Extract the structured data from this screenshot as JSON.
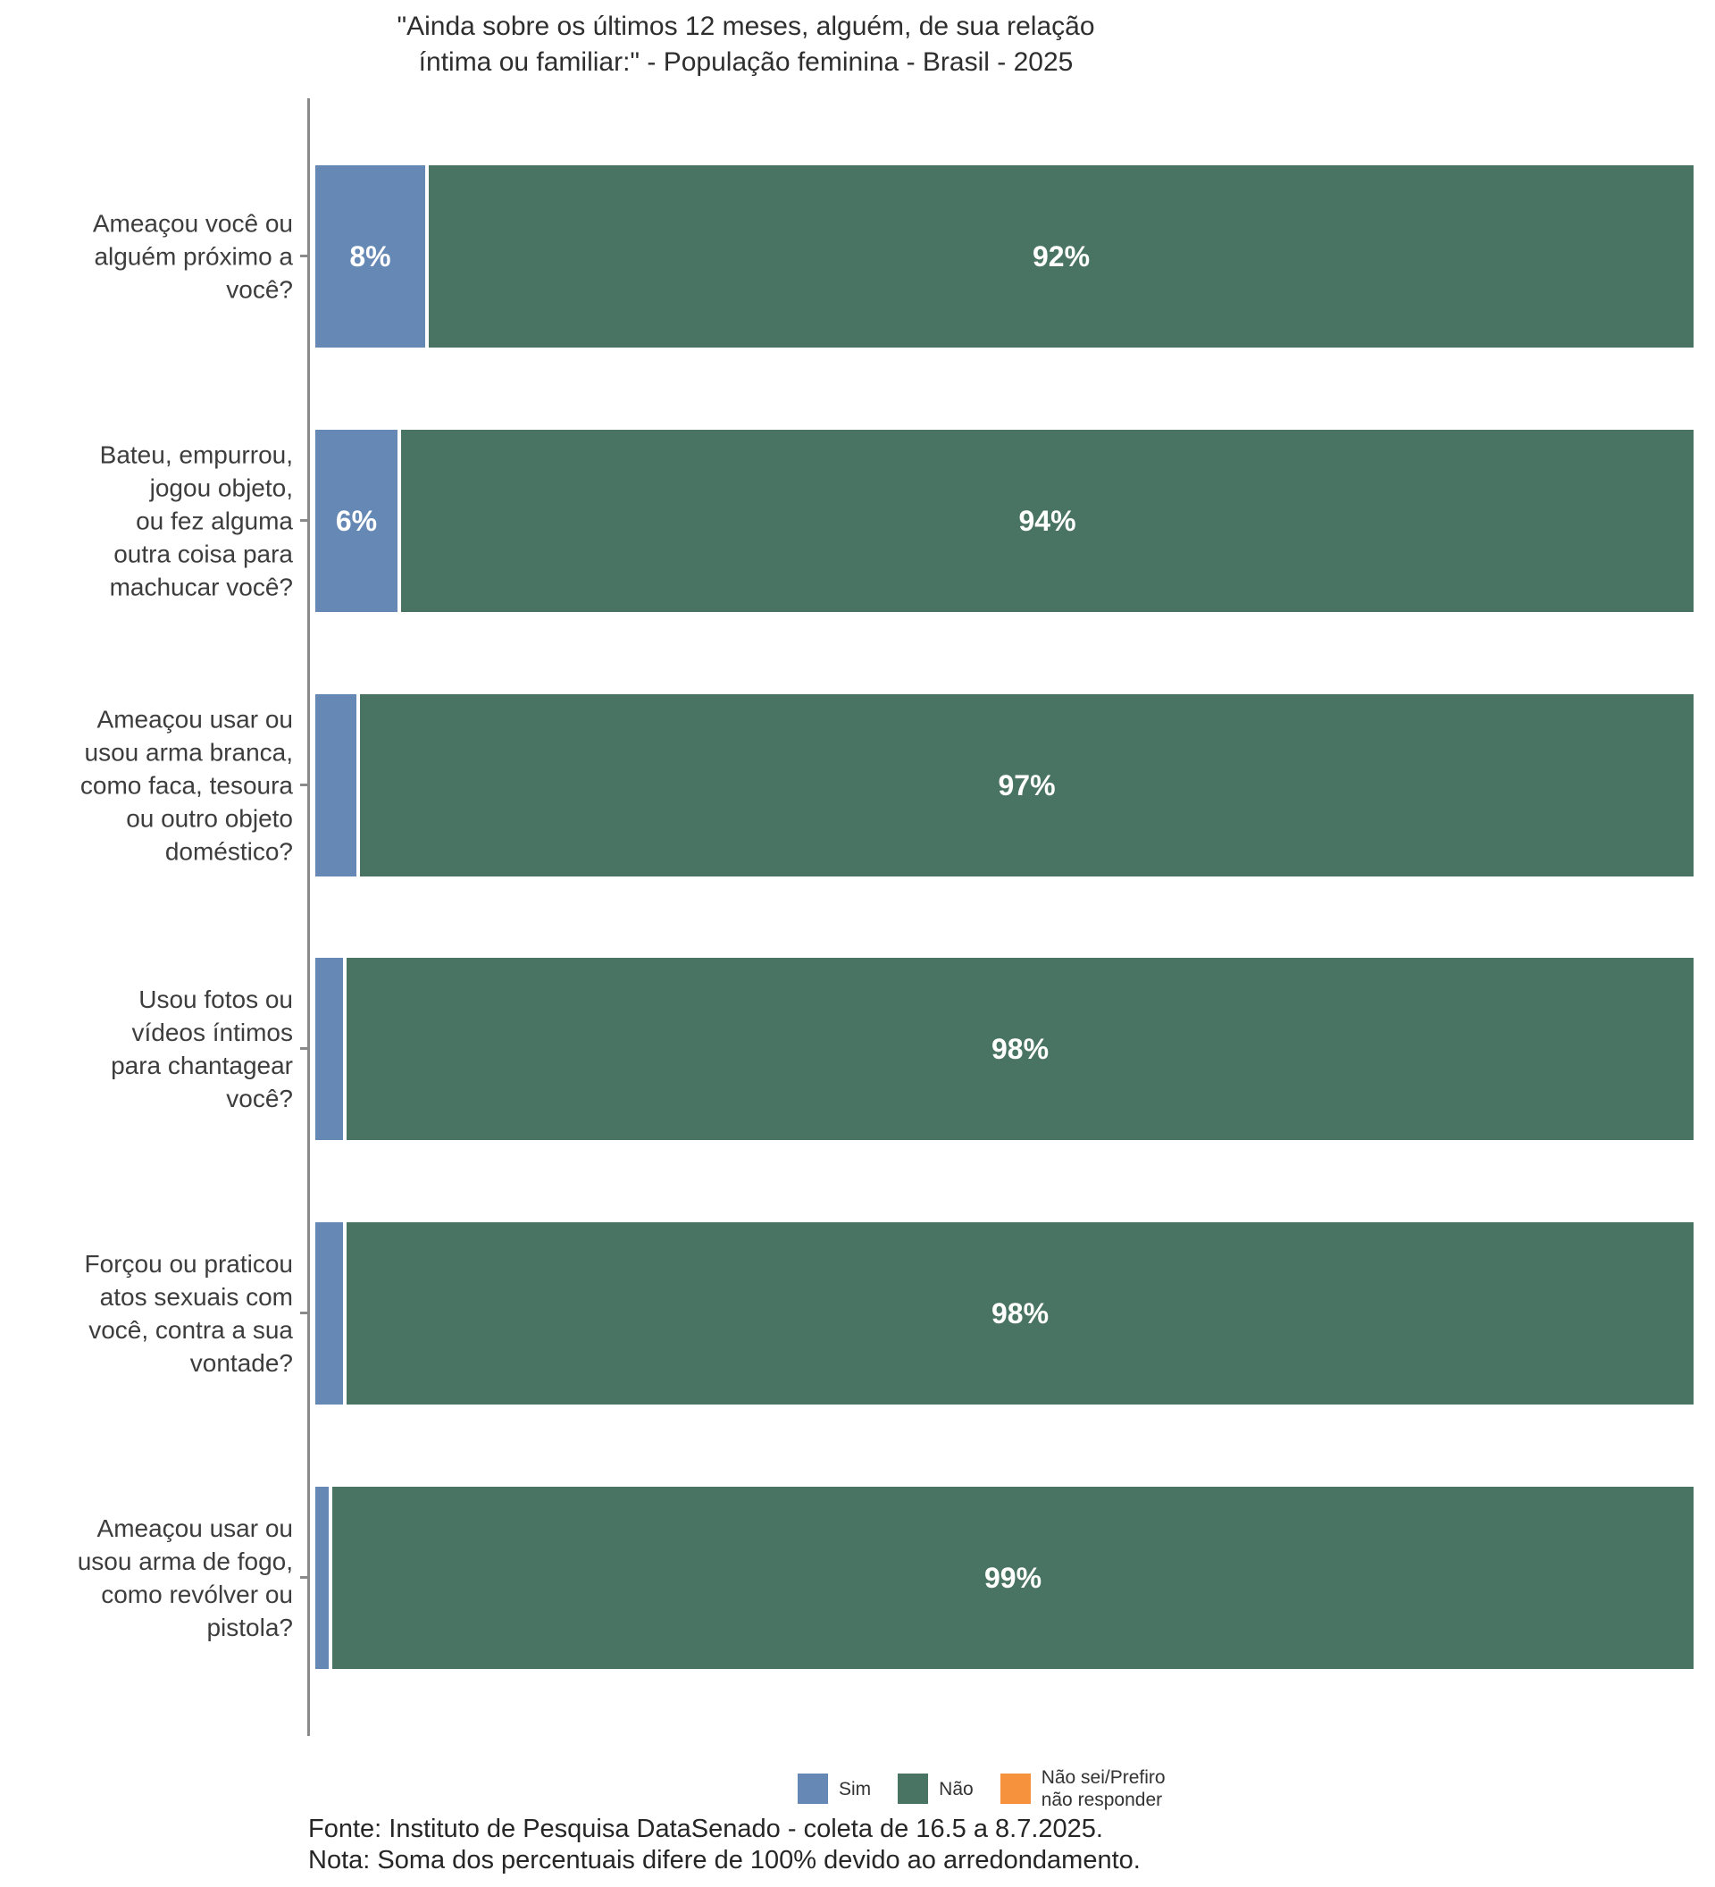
{
  "title": "\"Ainda sobre os últimos 12 meses, alguém, de sua relação\níntima ou familiar:\" - População feminina - Brasil - 2025",
  "caption": "Fonte: Instituto de Pesquisa DataSenado - coleta de 16.5 a 8.7.2025.\nNota: Soma dos percentuais difere de 100% devido ao arredondamento.",
  "legend": {
    "items": [
      {
        "label": "Sim",
        "color": "#6588b4"
      },
      {
        "label": "Não",
        "color": "#497363"
      },
      {
        "label": "Não sei/Prefiro\nnão responder",
        "color": "#f6913e"
      }
    ]
  },
  "chart_data": {
    "type": "bar",
    "orientation": "horizontal",
    "stacked": true,
    "unit": "%",
    "xlim": [
      0,
      100
    ],
    "title": "\"Ainda sobre os últimos 12 meses, alguém, de sua relação íntima ou familiar:\" - População feminina - Brasil - 2025",
    "categories": [
      "Ameaçou você ou\nalguém próximo a\nvocê?",
      "Bateu, empurrou,\njogou objeto,\nou fez alguma\noutra coisa para\nmachucar você?",
      "Ameaçou usar ou\nusou arma branca,\ncomo faca, tesoura\nou outro objeto\ndoméstico?",
      "Usou fotos ou\nvídeos íntimos\npara chantagear\nvocê?",
      "Forçou ou praticou\natos sexuais com\nvocê, contra a sua\nvontade?",
      "Ameaçou usar ou\nusou arma de fogo,\ncomo revólver ou\npistola?"
    ],
    "series": [
      {
        "name": "Sim",
        "color": "#6588b4",
        "values": [
          8,
          6,
          3,
          2,
          2,
          1
        ]
      },
      {
        "name": "Não",
        "color": "#497363",
        "values": [
          92,
          94,
          97,
          98,
          98,
          99
        ]
      },
      {
        "name": "Não sei/Prefiro não responder",
        "color": "#f6913e",
        "values": [
          0,
          0,
          0,
          0,
          0,
          0
        ]
      }
    ],
    "bar_labels": {
      "sim": [
        "8%",
        "6%",
        "",
        "",
        "",
        ""
      ],
      "nao": [
        "92%",
        "94%",
        "97%",
        "98%",
        "98%",
        "99%"
      ]
    },
    "legend_position": "bottom"
  }
}
